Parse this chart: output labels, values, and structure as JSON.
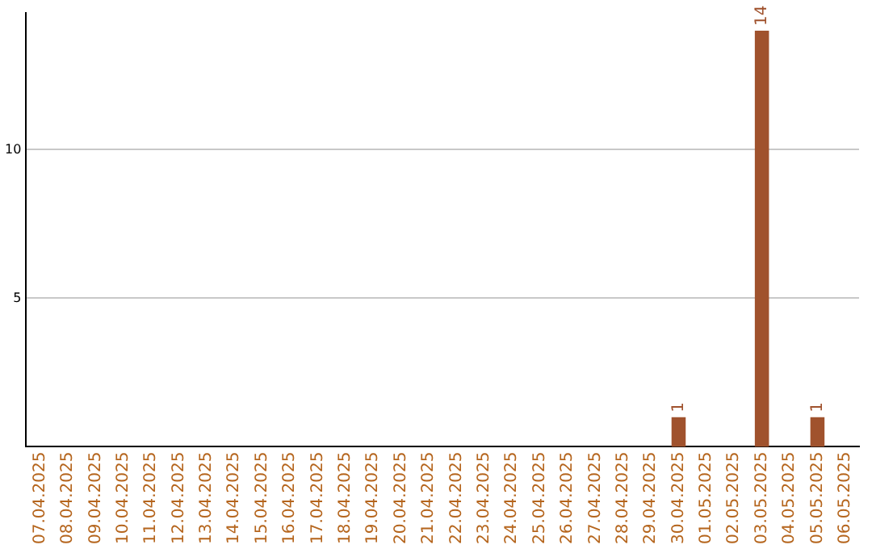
{
  "chart_data": {
    "type": "bar",
    "categories": [
      "07.04.2025",
      "08.04.2025",
      "09.04.2025",
      "10.04.2025",
      "11.04.2025",
      "12.04.2025",
      "13.04.2025",
      "14.04.2025",
      "15.04.2025",
      "16.04.2025",
      "17.04.2025",
      "18.04.2025",
      "19.04.2025",
      "20.04.2025",
      "21.04.2025",
      "22.04.2025",
      "23.04.2025",
      "24.04.2025",
      "25.04.2025",
      "26.04.2025",
      "27.04.2025",
      "28.04.2025",
      "29.04.2025",
      "30.04.2025",
      "01.05.2025",
      "02.05.2025",
      "03.05.2025",
      "04.05.2025",
      "05.05.2025",
      "06.05.2025"
    ],
    "values": [
      0,
      0,
      0,
      0,
      0,
      0,
      0,
      0,
      0,
      0,
      0,
      0,
      0,
      0,
      0,
      0,
      0,
      0,
      0,
      0,
      0,
      0,
      0,
      1,
      0,
      0,
      14,
      0,
      1,
      0
    ],
    "value_labels": [
      null,
      null,
      null,
      null,
      null,
      null,
      null,
      null,
      null,
      null,
      null,
      null,
      null,
      null,
      null,
      null,
      null,
      null,
      null,
      null,
      null,
      null,
      null,
      "1",
      null,
      null,
      "14",
      null,
      "1",
      null
    ],
    "color": "#a0522d",
    "ylim": [
      0,
      14.6
    ],
    "yticks": [
      5,
      10
    ],
    "grid": "y",
    "legend": false
  }
}
